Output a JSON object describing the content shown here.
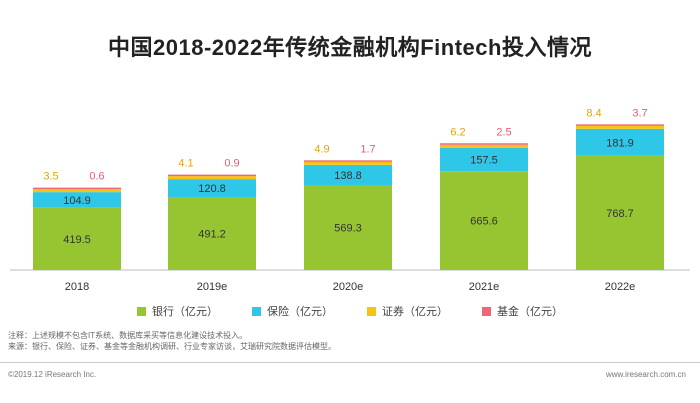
{
  "chart_data": {
    "type": "bar",
    "stacked": true,
    "title": "中国2018-2022年传统金融机构Fintech投入情况",
    "categories": [
      "2018",
      "2019e",
      "2020e",
      "2021e",
      "2022e"
    ],
    "series": [
      {
        "name": "银行（亿元）",
        "color": "#96c531",
        "values": [
          419.5,
          491.2,
          569.3,
          665.6,
          768.7
        ]
      },
      {
        "name": "保险（亿元）",
        "color": "#2ec7e8",
        "values": [
          104.9,
          120.8,
          138.8,
          157.5,
          181.9
        ]
      },
      {
        "name": "证券（亿元）",
        "color": "#f5c313",
        "values": [
          3.5,
          4.1,
          4.9,
          6.2,
          8.4
        ]
      },
      {
        "name": "基金（亿元）",
        "color": "#f0647c",
        "values": [
          0.6,
          0.9,
          1.7,
          2.5,
          3.7
        ]
      }
    ],
    "legend_position": "bottom",
    "grid": false
  },
  "notes": {
    "line1": "注释：上述规模不包含IT系统、数据库采买等信息化建设技术投入。",
    "line2": "来源：银行、保险、证券、基金等金融机构调研、行业专家访谈，艾瑞研究院数据评估模型。"
  },
  "footer": {
    "copyright": "©2019.12 iResearch Inc.",
    "website": "www.iresearch.com.cn"
  }
}
